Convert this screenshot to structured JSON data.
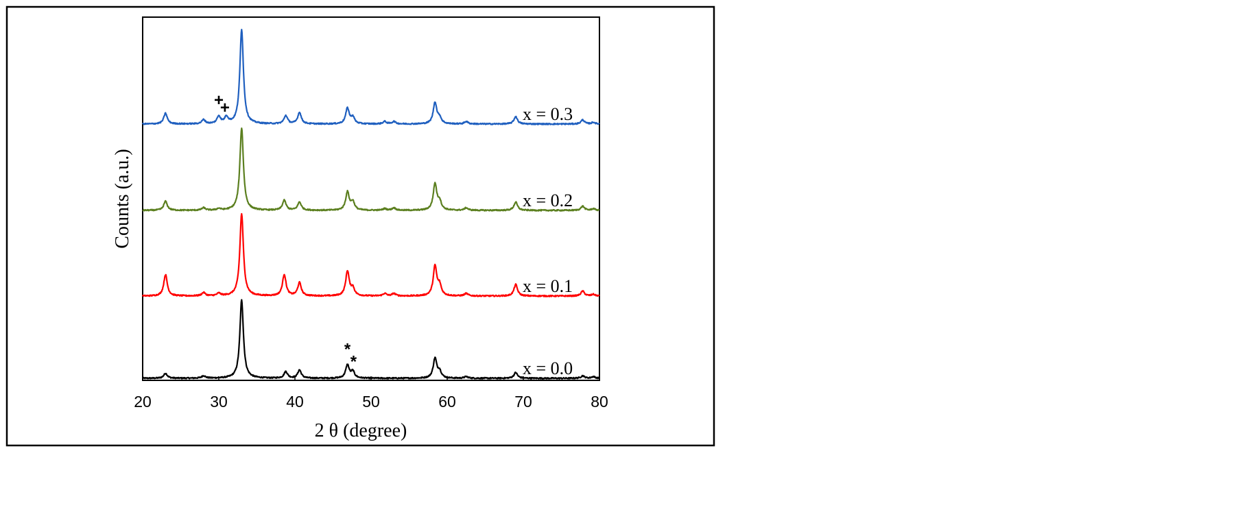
{
  "chart_data": {
    "type": "line",
    "xlabel": "2 θ  (degree)",
    "ylabel": "Counts (a.u.)",
    "xlim": [
      20,
      80
    ],
    "x_ticks": [
      "20",
      "30",
      "40",
      "50",
      "60",
      "70",
      "80"
    ],
    "y_ticks": "none",
    "grid": false,
    "legend": "inline labels at right of each trace",
    "series": [
      {
        "name": "x = 0.0",
        "color": "#000000",
        "offset_level": 0,
        "peaks": [
          [
            23.0,
            0.06
          ],
          [
            28.0,
            0.03
          ],
          [
            33.0,
            0.95
          ],
          [
            38.8,
            0.08
          ],
          [
            40.6,
            0.1
          ],
          [
            46.9,
            0.16
          ],
          [
            47.6,
            0.08
          ],
          [
            58.4,
            0.24
          ],
          [
            59.0,
            0.08
          ],
          [
            62.5,
            0.02
          ],
          [
            69.0,
            0.07
          ],
          [
            77.8,
            0.03
          ],
          [
            79.2,
            0.02
          ]
        ]
      },
      {
        "name": "x = 0.1",
        "color": "#ff0000",
        "offset_level": 1,
        "peaks": [
          [
            23.0,
            0.26
          ],
          [
            28.0,
            0.04
          ],
          [
            30.0,
            0.03
          ],
          [
            33.0,
            1.0
          ],
          [
            38.6,
            0.26
          ],
          [
            40.6,
            0.16
          ],
          [
            46.9,
            0.3
          ],
          [
            47.6,
            0.09
          ],
          [
            51.8,
            0.03
          ],
          [
            53.0,
            0.03
          ],
          [
            58.4,
            0.36
          ],
          [
            59.0,
            0.12
          ],
          [
            62.5,
            0.03
          ],
          [
            69.0,
            0.14
          ],
          [
            77.8,
            0.06
          ],
          [
            79.2,
            0.02
          ]
        ]
      },
      {
        "name": "x = 0.2",
        "color": "#5b7f1f",
        "offset_level": 2,
        "peaks": [
          [
            23.0,
            0.11
          ],
          [
            28.0,
            0.03
          ],
          [
            30.0,
            0.02
          ],
          [
            33.0,
            1.0
          ],
          [
            38.6,
            0.12
          ],
          [
            40.6,
            0.1
          ],
          [
            46.9,
            0.22
          ],
          [
            47.6,
            0.1
          ],
          [
            51.8,
            0.02
          ],
          [
            53.0,
            0.03
          ],
          [
            58.4,
            0.32
          ],
          [
            59.0,
            0.1
          ],
          [
            62.5,
            0.03
          ],
          [
            69.0,
            0.1
          ],
          [
            77.8,
            0.05
          ],
          [
            79.2,
            0.02
          ]
        ]
      },
      {
        "name": "x = 0.3",
        "color": "#1f5fbf",
        "offset_level": 3,
        "peaks": [
          [
            23.0,
            0.13
          ],
          [
            28.0,
            0.05
          ],
          [
            30.0,
            0.09
          ],
          [
            31.0,
            0.08
          ],
          [
            33.0,
            1.15
          ],
          [
            38.8,
            0.1
          ],
          [
            40.6,
            0.14
          ],
          [
            46.9,
            0.19
          ],
          [
            47.6,
            0.08
          ],
          [
            51.8,
            0.03
          ],
          [
            53.0,
            0.03
          ],
          [
            58.4,
            0.26
          ],
          [
            59.0,
            0.07
          ],
          [
            62.5,
            0.03
          ],
          [
            69.0,
            0.09
          ],
          [
            77.8,
            0.05
          ],
          [
            79.2,
            0.02
          ]
        ]
      }
    ],
    "annotations": [
      {
        "text": "+",
        "x": 30.0,
        "series": "x = 0.3"
      },
      {
        "text": "+",
        "x": 30.8,
        "series": "x = 0.3"
      },
      {
        "text": "*",
        "x": 46.9,
        "series": "x = 0.0"
      },
      {
        "text": "*",
        "x": 47.7,
        "series": "x = 0.0"
      }
    ]
  }
}
